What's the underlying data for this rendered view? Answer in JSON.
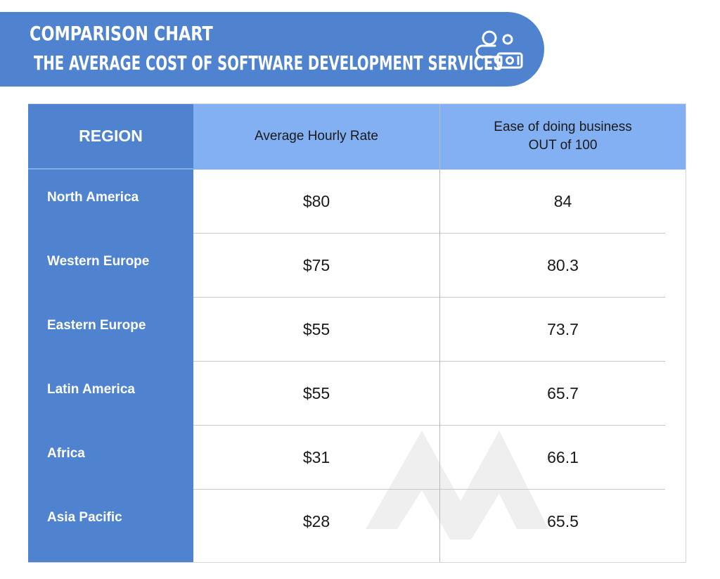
{
  "header": {
    "title": "COMPARISON CHART",
    "subtitle": "THE AVERAGE COST OF SOFTWARE DEVELOPMENT SERVICES",
    "icon": "people-money-icon",
    "color": "#4f83cf"
  },
  "chart_data": {
    "type": "table",
    "columns": {
      "region": "REGION",
      "rate": "Average Hourly Rate",
      "ease_line1": "Ease of doing business",
      "ease_line2": "OUT of 100"
    },
    "rows": [
      {
        "region": "North America",
        "rate": "$80",
        "ease": "84"
      },
      {
        "region": "Western Europe",
        "rate": "$75",
        "ease": "80.3"
      },
      {
        "region": "Eastern Europe",
        "rate": "$55",
        "ease": "73.7"
      },
      {
        "region": "Latin America",
        "rate": "$55",
        "ease": "65.7"
      },
      {
        "region": "Africa",
        "rate": "$31",
        "ease": "66.1"
      },
      {
        "region": "Asia Pacific",
        "rate": "$28",
        "ease": "65.5"
      }
    ],
    "colors": {
      "region_column": "#4f83cf",
      "header_row": "#82b0f2"
    }
  }
}
